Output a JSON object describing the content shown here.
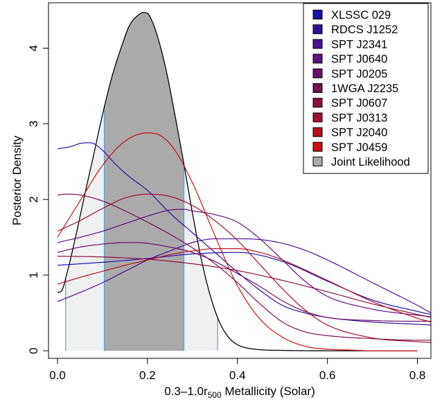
{
  "chart_data": {
    "type": "line",
    "title": "",
    "xlabel": "0.3–1.0r",
    "xlabel_sub": "500",
    "xlabel_tail": " Metallicity (Solar)",
    "ylabel": "Posterior Density",
    "xlim": [
      -0.02,
      0.83
    ],
    "ylim": [
      -0.1,
      4.6
    ],
    "x_ticks": [
      "0.0",
      "0.2",
      "0.4",
      "0.6",
      "0.8"
    ],
    "y_ticks": [
      "0",
      "1",
      "2",
      "3",
      "4"
    ],
    "grid": false,
    "legend_position": "top-right",
    "joint": {
      "name": "Joint Likelihood",
      "fill": "#aaaaaa",
      "light_fill": "#f0f0f0",
      "outline": "#000000",
      "interval_color": "#4aa3df",
      "interval_68": [
        0.104,
        0.281
      ],
      "interval_95": [
        0.018,
        0.356
      ],
      "x": [
        0.0,
        0.01,
        0.02,
        0.04,
        0.06,
        0.08,
        0.1,
        0.12,
        0.14,
        0.16,
        0.18,
        0.19,
        0.2,
        0.21,
        0.22,
        0.24,
        0.26,
        0.28,
        0.3,
        0.32,
        0.34,
        0.36,
        0.38,
        0.4,
        0.44,
        0.5,
        0.6,
        0.8
      ],
      "y": [
        0.77,
        0.8,
        1.0,
        1.5,
        2.05,
        2.58,
        3.12,
        3.6,
        3.98,
        4.3,
        4.44,
        4.47,
        4.46,
        4.36,
        4.2,
        3.75,
        3.15,
        2.5,
        1.82,
        1.2,
        0.72,
        0.38,
        0.18,
        0.08,
        0.02,
        0.005,
        0.0,
        0.0
      ]
    },
    "series": [
      {
        "name": "XLSSC 029",
        "color": "#1a0fb0",
        "x": [
          0.0,
          0.1,
          0.2,
          0.3,
          0.4,
          0.5,
          0.6,
          0.7,
          0.8,
          0.83
        ],
        "y": [
          1.13,
          1.17,
          1.22,
          1.28,
          1.3,
          1.18,
          0.92,
          0.67,
          0.52,
          0.48
        ]
      },
      {
        "name": "RDCS J1252",
        "color": "#2f0f9a",
        "x": [
          0.0,
          0.03,
          0.05,
          0.07,
          0.08,
          0.1,
          0.13,
          0.16,
          0.2,
          0.25,
          0.3,
          0.35,
          0.4,
          0.45,
          0.5,
          0.55,
          0.6,
          0.7,
          0.8,
          0.83
        ],
        "y": [
          2.67,
          2.7,
          2.74,
          2.75,
          2.74,
          2.65,
          2.46,
          2.3,
          2.12,
          1.82,
          1.56,
          1.3,
          1.04,
          0.8,
          0.6,
          0.5,
          0.44,
          0.38,
          0.35,
          0.34
        ]
      },
      {
        "name": "SPT J2341",
        "color": "#4e108f",
        "x": [
          0.0,
          0.05,
          0.1,
          0.15,
          0.2,
          0.25,
          0.3,
          0.35,
          0.4,
          0.45,
          0.5,
          0.55,
          0.6,
          0.7,
          0.8,
          0.83
        ],
        "y": [
          0.65,
          0.77,
          0.9,
          1.05,
          1.2,
          1.32,
          1.43,
          1.48,
          1.48,
          1.47,
          1.42,
          1.33,
          1.2,
          0.9,
          0.6,
          0.5
        ]
      },
      {
        "name": "SPT J0640",
        "color": "#630f82",
        "x": [
          0.0,
          0.05,
          0.1,
          0.15,
          0.2,
          0.25,
          0.28,
          0.3,
          0.35,
          0.4,
          0.45,
          0.5,
          0.55,
          0.6,
          0.7,
          0.8,
          0.83
        ],
        "y": [
          1.43,
          1.5,
          1.58,
          1.68,
          1.78,
          1.86,
          1.87,
          1.85,
          1.8,
          1.7,
          1.48,
          1.2,
          0.92,
          0.72,
          0.55,
          0.47,
          0.45
        ]
      },
      {
        "name": "SPT J0205",
        "color": "#6d0f6a",
        "x": [
          0.0,
          0.05,
          0.1,
          0.15,
          0.18,
          0.2,
          0.25,
          0.3,
          0.35,
          0.4,
          0.45,
          0.5,
          0.55,
          0.6,
          0.7,
          0.8,
          0.83
        ],
        "y": [
          1.3,
          1.37,
          1.41,
          1.43,
          1.43,
          1.42,
          1.37,
          1.3,
          1.18,
          1.02,
          0.85,
          0.66,
          0.52,
          0.44,
          0.4,
          0.39,
          0.39
        ]
      },
      {
        "name": "1WGA J2235",
        "color": "#7a0f52",
        "x": [
          0.0,
          0.02,
          0.05,
          0.1,
          0.15,
          0.2,
          0.25,
          0.3,
          0.35,
          0.4,
          0.45,
          0.5,
          0.55,
          0.6,
          0.7,
          0.8,
          0.83
        ],
        "y": [
          2.06,
          2.07,
          2.06,
          1.98,
          1.85,
          1.7,
          1.54,
          1.36,
          1.15,
          0.9,
          0.62,
          0.38,
          0.25,
          0.2,
          0.16,
          0.14,
          0.14
        ]
      },
      {
        "name": "SPT J0607",
        "color": "#8c0f40",
        "x": [
          0.0,
          0.1,
          0.2,
          0.3,
          0.4,
          0.5,
          0.6,
          0.7,
          0.8,
          0.83
        ],
        "y": [
          1.25,
          1.24,
          1.21,
          1.15,
          1.06,
          0.93,
          0.78,
          0.62,
          0.48,
          0.44
        ]
      },
      {
        "name": "SPT J0313",
        "color": "#a20f2c",
        "x": [
          0.0,
          0.05,
          0.1,
          0.15,
          0.2,
          0.25,
          0.3,
          0.35,
          0.4,
          0.45,
          0.5,
          0.55,
          0.6,
          0.7,
          0.8,
          0.83
        ],
        "y": [
          1.58,
          1.72,
          1.88,
          2.02,
          2.07,
          2.04,
          1.92,
          1.72,
          1.46,
          1.14,
          0.82,
          0.54,
          0.34,
          0.17,
          0.12,
          0.11
        ]
      },
      {
        "name": "SPT J2040",
        "color": "#b50f1e",
        "x": [
          0.0,
          0.05,
          0.1,
          0.15,
          0.2,
          0.25,
          0.3,
          0.35,
          0.4,
          0.45,
          0.5,
          0.6,
          0.7,
          0.8,
          0.83
        ],
        "y": [
          0.88,
          0.97,
          1.05,
          1.13,
          1.2,
          1.27,
          1.32,
          1.35,
          1.35,
          1.3,
          1.2,
          0.93,
          0.65,
          0.43,
          0.38
        ]
      },
      {
        "name": "SPT J0459",
        "color": "#cc1010",
        "x": [
          0.0,
          0.05,
          0.1,
          0.15,
          0.2,
          0.23,
          0.26,
          0.3,
          0.35,
          0.4,
          0.45,
          0.5,
          0.55,
          0.6,
          0.65,
          0.7,
          0.8
        ],
        "y": [
          1.5,
          1.98,
          2.45,
          2.77,
          2.88,
          2.84,
          2.66,
          2.22,
          1.52,
          0.86,
          0.42,
          0.18,
          0.06,
          0.02,
          0.01,
          0.0,
          0.0
        ]
      }
    ]
  }
}
